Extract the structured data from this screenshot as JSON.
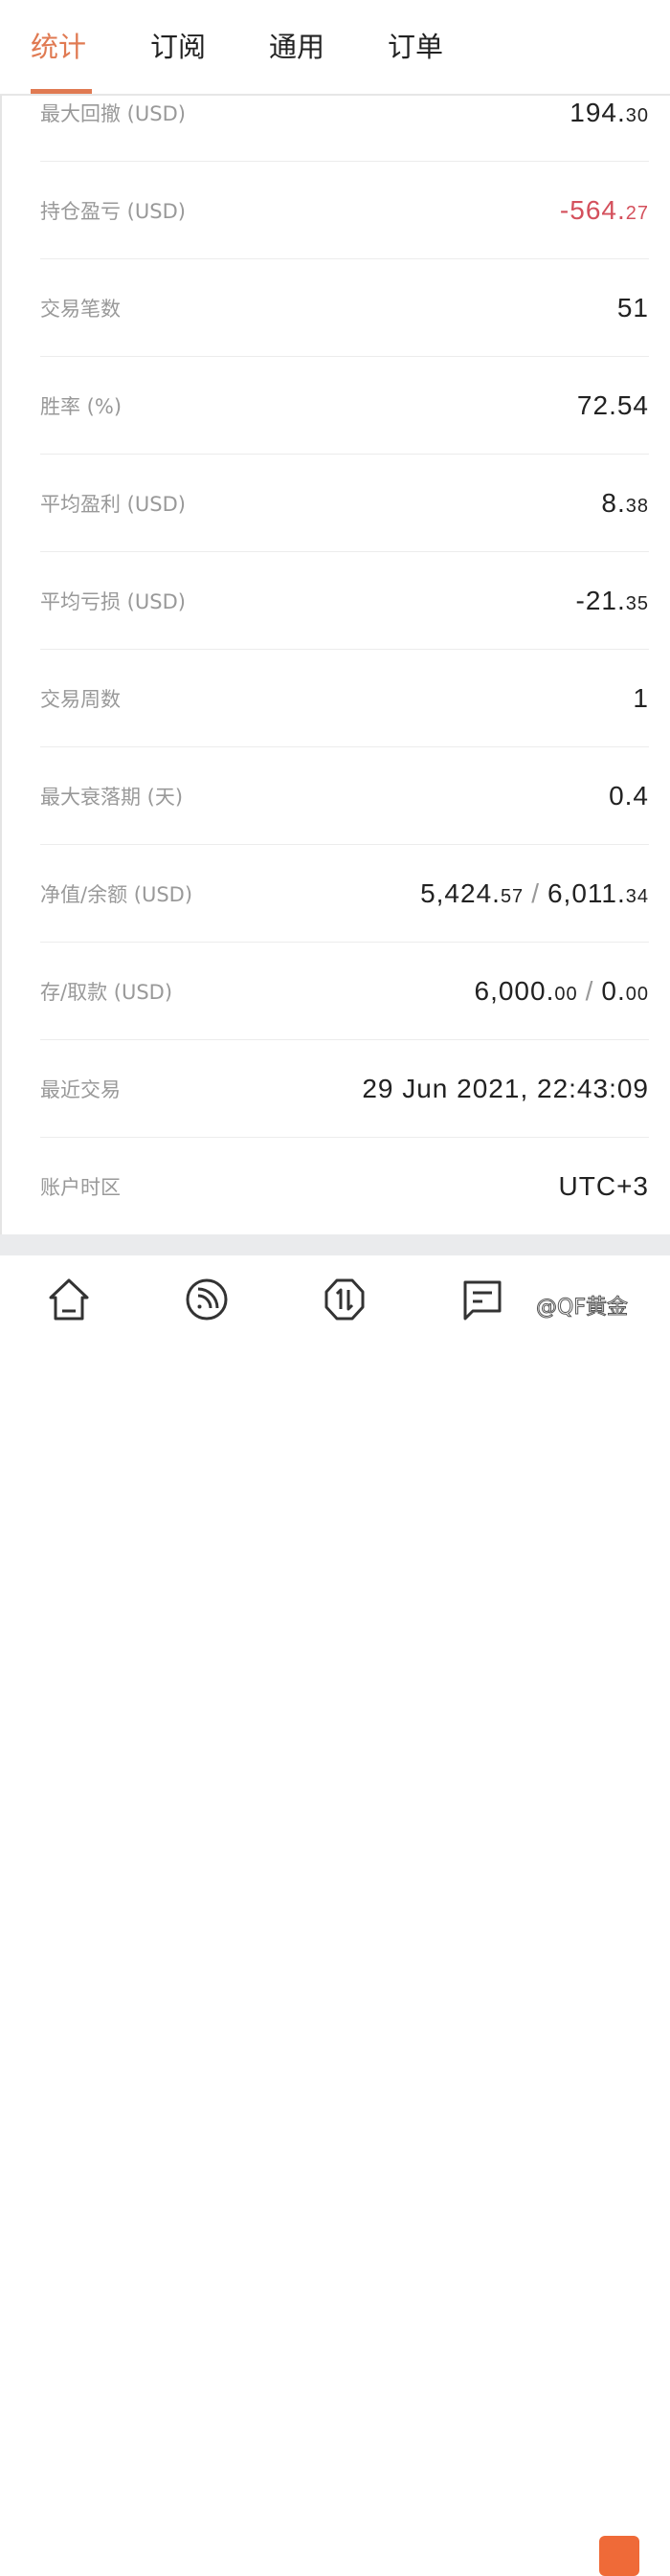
{
  "tabs": [
    {
      "label": "统计",
      "active": true
    },
    {
      "label": "订阅"
    },
    {
      "label": "通用"
    },
    {
      "label": "订单"
    }
  ],
  "stats": [
    {
      "label": "最大回撤 (USD)",
      "int": "194.",
      "dec": "30"
    },
    {
      "label": "持仓盈亏 (USD)",
      "int": "-564.",
      "dec": "27",
      "negative": true
    },
    {
      "label": "交易笔数",
      "int": "51",
      "dec": ""
    },
    {
      "label": "胜率 (%)",
      "int": "72.54",
      "dec": ""
    },
    {
      "label": "平均盈利 (USD)",
      "int": "8.",
      "dec": "38"
    },
    {
      "label": "平均亏损 (USD)",
      "int": "-21.",
      "dec": "35"
    },
    {
      "label": "交易周数",
      "int": "1",
      "dec": ""
    },
    {
      "label": "最大衰落期 (天)",
      "int": "0.4",
      "dec": ""
    },
    {
      "label": "净值/余额 (USD)",
      "int": "5,424.",
      "dec": "57",
      "int2": "6,011.",
      "dec2": "34"
    },
    {
      "label": "存/取款 (USD)",
      "int": "6,000.",
      "dec": "00",
      "int2": "0.",
      "dec2": "00"
    },
    {
      "label": "最近交易",
      "int": "29 Jun 2021, 22:43:09",
      "dec": ""
    },
    {
      "label": "账户时区",
      "int": "UTC+3",
      "dec": ""
    }
  ],
  "separator": "/",
  "nav": [
    {
      "icon": "home-icon"
    },
    {
      "icon": "rss-icon"
    },
    {
      "icon": "trade-icon"
    },
    {
      "icon": "message-icon"
    },
    {
      "icon": "app-icon"
    }
  ],
  "watermark": "@QF黄金",
  "colors": {
    "accent": "#e07a52",
    "negative": "#d4505c",
    "nav_badge": "#ef6a38"
  }
}
